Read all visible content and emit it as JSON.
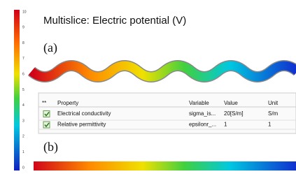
{
  "colorbar": {
    "ticks": [
      "10",
      "9",
      "8",
      "7",
      "6",
      "5",
      "4",
      "3",
      "2",
      "1",
      "0"
    ]
  },
  "title": "Multislice: Electric potential (V)",
  "panel_a": "(a)",
  "panel_b": "(b)",
  "table": {
    "header": [
      "**",
      "Property",
      "Variable",
      "Value",
      "Unit"
    ],
    "rows": [
      [
        "Electrical conductivity",
        "sigma_is...",
        "20[S/m]",
        "S/m"
      ],
      [
        "Relative permittivity",
        "epsilonr_...",
        "1",
        "1"
      ]
    ]
  }
}
